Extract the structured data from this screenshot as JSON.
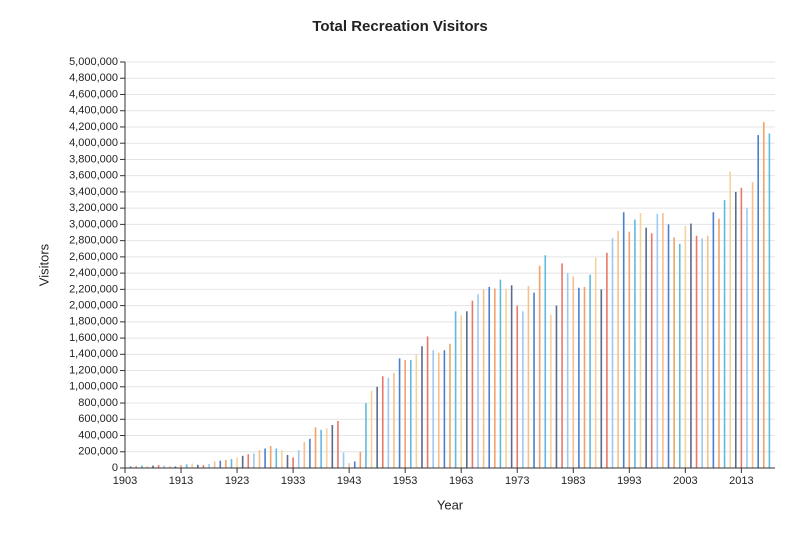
{
  "chart_data": {
    "type": "bar",
    "title": "Total Recreation Visitors",
    "x_label": "Year",
    "y_label": "Visitors",
    "x": [
      1904,
      1905,
      1906,
      1907,
      1908,
      1909,
      1910,
      1911,
      1912,
      1913,
      1914,
      1915,
      1916,
      1917,
      1918,
      1919,
      1920,
      1921,
      1922,
      1923,
      1924,
      1925,
      1926,
      1927,
      1928,
      1929,
      1930,
      1931,
      1932,
      1933,
      1934,
      1935,
      1936,
      1937,
      1938,
      1939,
      1940,
      1941,
      1942,
      1943,
      1944,
      1945,
      1946,
      1947,
      1948,
      1949,
      1950,
      1951,
      1952,
      1953,
      1954,
      1955,
      1956,
      1957,
      1958,
      1959,
      1960,
      1961,
      1962,
      1963,
      1964,
      1965,
      1966,
      1967,
      1968,
      1969,
      1970,
      1971,
      1972,
      1973,
      1974,
      1975,
      1976,
      1977,
      1978,
      1979,
      1980,
      1981,
      1982,
      1983,
      1984,
      1985,
      1986,
      1987,
      1988,
      1989,
      1990,
      1991,
      1992,
      1993,
      1994,
      1995,
      1996,
      1997,
      1998,
      1999,
      2000,
      2001,
      2002,
      2003,
      2004,
      2005,
      2006,
      2007,
      2008,
      2009,
      2010,
      2011,
      2012,
      2013,
      2014,
      2015,
      2016,
      2017,
      2018
    ],
    "values": [
      20000,
      25000,
      30000,
      25000,
      30000,
      35000,
      30000,
      25000,
      20000,
      35000,
      45000,
      55000,
      40000,
      35000,
      50000,
      80000,
      90000,
      100000,
      110000,
      130000,
      150000,
      170000,
      180000,
      220000,
      240000,
      270000,
      240000,
      220000,
      160000,
      130000,
      220000,
      320000,
      360000,
      500000,
      470000,
      490000,
      530000,
      580000,
      190000,
      60000,
      80000,
      200000,
      800000,
      950000,
      1000000,
      1130000,
      1110000,
      1170000,
      1350000,
      1330000,
      1330000,
      1400000,
      1500000,
      1620000,
      1450000,
      1420000,
      1450000,
      1530000,
      1930000,
      1880000,
      1930000,
      2060000,
      2140000,
      2200000,
      2230000,
      2210000,
      2320000,
      2210000,
      2250000,
      2000000,
      1930000,
      2240000,
      2160000,
      2490000,
      2620000,
      1890000,
      2000000,
      2520000,
      2400000,
      2360000,
      2220000,
      2230000,
      2380000,
      2590000,
      2200000,
      2650000,
      2830000,
      2920000,
      3150000,
      2910000,
      3060000,
      3140000,
      2960000,
      2890000,
      3130000,
      3140000,
      3000000,
      2840000,
      2760000,
      2980000,
      3010000,
      2860000,
      2830000,
      2860000,
      3150000,
      3070000,
      3300000,
      3650000,
      3400000,
      3450000,
      3200000,
      3520000,
      4100000,
      4260000,
      4120000
    ],
    "palette": [
      "#4a7fd0",
      "#f0a46a",
      "#62b8e0",
      "#f2d59a",
      "#5a6b8c",
      "#e8786a",
      "#9ec9ef",
      "#f6c08e"
    ],
    "xlim": [
      1903,
      2019
    ],
    "xticks": [
      1903,
      1913,
      1923,
      1933,
      1943,
      1953,
      1963,
      1973,
      1983,
      1993,
      2003,
      2013
    ],
    "ylim": [
      0,
      5000000
    ],
    "yticks": [
      0,
      {
        "value": 200000,
        "label": "200,000"
      },
      {
        "value": 400000,
        "label": "400,000"
      },
      {
        "value": 600000,
        "label": "600,000"
      },
      {
        "value": 800000,
        "label": "800,000"
      },
      {
        "value": 1000000,
        "label": "1,000,000"
      },
      {
        "value": 1200000,
        "label": "1,200,000"
      },
      {
        "value": 1400000,
        "label": "1,400,000"
      },
      {
        "value": 1600000,
        "label": "1,600,000"
      },
      {
        "value": 1800000,
        "label": "1,800,000"
      },
      {
        "value": 2000000,
        "label": "2,000,000"
      },
      {
        "value": 2200000,
        "label": "2,200,000"
      },
      {
        "value": 2400000,
        "label": "2,400,000"
      },
      {
        "value": 2600000,
        "label": "2,600,000"
      },
      {
        "value": 2800000,
        "label": "2,800,000"
      },
      {
        "value": 3000000,
        "label": "3,000,000"
      },
      {
        "value": 3200000,
        "label": "3,200,000"
      },
      {
        "value": 3400000,
        "label": "3,400,000"
      },
      {
        "value": 3600000,
        "label": "3,600,000"
      },
      {
        "value": 3800000,
        "label": "3,800,000"
      },
      {
        "value": 4000000,
        "label": "4,000,000"
      },
      {
        "value": 4200000,
        "label": "4,200,000"
      },
      {
        "value": 4400000,
        "label": "4,400,000"
      },
      {
        "value": 4600000,
        "label": "4,600,000"
      },
      {
        "value": 4800000,
        "label": "4,800,000"
      },
      {
        "value": 5000000,
        "label": "5,000,000"
      }
    ],
    "grid": true
  }
}
